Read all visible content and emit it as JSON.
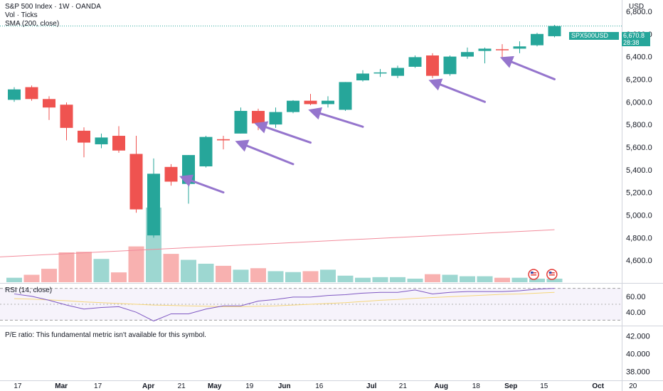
{
  "header": {
    "title": "S&P 500 Index · 1W · OANDA",
    "vol_label": "Vol · Ticks",
    "sma_label": "SMA (200, close)",
    "currency": "USD"
  },
  "last_price": {
    "symbol": "SPX500USD",
    "price": "6,670.8",
    "countdown": "28:38",
    "value": 6670.8
  },
  "rsi_panel": {
    "label": "RSI (14, close)"
  },
  "pe_panel": {
    "message": "P/E ratio: This fundamental metric isn't available for this symbol."
  },
  "colors": {
    "up": "#26a69a",
    "down": "#ef5350",
    "rsi": "#7e57c2",
    "rsi_ma": "#f5d67a",
    "sma": "#f28b9b",
    "arrow": "#9575cd",
    "badge": "#26a69a"
  },
  "chart_data": [
    {
      "type": "candlestick",
      "title": "S&P 500 Index · 1W · OANDA",
      "ylim": [
        4400,
        6900
      ],
      "y_ticks": [
        4600,
        4800,
        5000,
        5200,
        5400,
        5600,
        5800,
        6000,
        6200,
        6400,
        6600,
        6800
      ],
      "y_tick_labels": [
        "4,600.0",
        "4,800.0",
        "5,000.0",
        "5,200.0",
        "5,400.0",
        "5,600.0",
        "5,800.0",
        "6,000.0",
        "6,200.0",
        "6,400.0",
        "6,600.0",
        "6,800.0"
      ],
      "x_tick_labels": [
        "17",
        "Mar",
        "17",
        "Apr",
        "21",
        "May",
        "19",
        "Jun",
        "16",
        "Jul",
        "21",
        "Aug",
        "18",
        "Sep",
        "15",
        "Oct",
        "20"
      ],
      "x_tick_slots": [
        0.2,
        2.7,
        4.8,
        7.7,
        9.6,
        11.5,
        13.5,
        15.5,
        17.5,
        20.5,
        22.3,
        24.5,
        26.5,
        28.5,
        30.4,
        33.5,
        35.5
      ],
      "candles": [
        {
          "o": 6018,
          "h": 6130,
          "l": 6000,
          "c": 6110
        },
        {
          "o": 6130,
          "h": 6145,
          "l": 6010,
          "c": 6025
        },
        {
          "o": 6025,
          "h": 6050,
          "l": 5840,
          "c": 5950
        },
        {
          "o": 5975,
          "h": 5995,
          "l": 5660,
          "c": 5770
        },
        {
          "o": 5745,
          "h": 5775,
          "l": 5510,
          "c": 5640
        },
        {
          "o": 5625,
          "h": 5720,
          "l": 5590,
          "c": 5685
        },
        {
          "o": 5700,
          "h": 5785,
          "l": 5550,
          "c": 5570
        },
        {
          "o": 5540,
          "h": 5700,
          "l": 5020,
          "c": 5050
        },
        {
          "o": 4820,
          "h": 5500,
          "l": 4800,
          "c": 5365
        },
        {
          "o": 5425,
          "h": 5450,
          "l": 5260,
          "c": 5295
        },
        {
          "o": 5275,
          "h": 5530,
          "l": 5100,
          "c": 5530
        },
        {
          "o": 5430,
          "h": 5700,
          "l": 5420,
          "c": 5690
        },
        {
          "o": 5670,
          "h": 5700,
          "l": 5580,
          "c": 5660
        },
        {
          "o": 5720,
          "h": 5950,
          "l": 5720,
          "c": 5920
        },
        {
          "o": 5920,
          "h": 5940,
          "l": 5750,
          "c": 5810
        },
        {
          "o": 5800,
          "h": 5950,
          "l": 5770,
          "c": 5910
        },
        {
          "o": 5910,
          "h": 6015,
          "l": 5900,
          "c": 6010
        },
        {
          "o": 6010,
          "h": 6070,
          "l": 5970,
          "c": 5980
        },
        {
          "o": 5980,
          "h": 6050,
          "l": 5950,
          "c": 6010
        },
        {
          "o": 5930,
          "h": 6175,
          "l": 5920,
          "c": 6175
        },
        {
          "o": 6190,
          "h": 6280,
          "l": 6180,
          "c": 6250
        },
        {
          "o": 6260,
          "h": 6290,
          "l": 6220,
          "c": 6260
        },
        {
          "o": 6230,
          "h": 6320,
          "l": 6210,
          "c": 6300
        },
        {
          "o": 6310,
          "h": 6410,
          "l": 6300,
          "c": 6395
        },
        {
          "o": 6410,
          "h": 6430,
          "l": 6210,
          "c": 6230
        },
        {
          "o": 6245,
          "h": 6410,
          "l": 6230,
          "c": 6400
        },
        {
          "o": 6400,
          "h": 6480,
          "l": 6380,
          "c": 6440
        },
        {
          "o": 6450,
          "h": 6480,
          "l": 6340,
          "c": 6470
        },
        {
          "o": 6465,
          "h": 6510,
          "l": 6390,
          "c": 6460
        },
        {
          "o": 6470,
          "h": 6535,
          "l": 6430,
          "c": 6490
        },
        {
          "o": 6500,
          "h": 6610,
          "l": 6490,
          "c": 6600
        },
        {
          "o": 6580,
          "h": 6680,
          "l": 6570,
          "c": 6670
        }
      ],
      "volume": [
        0.15,
        0.25,
        0.45,
        1.0,
        1.02,
        0.78,
        0.33,
        1.2,
        2.5,
        0.95,
        0.75,
        0.62,
        0.55,
        0.42,
        0.47,
        0.37,
        0.34,
        0.37,
        0.42,
        0.22,
        0.15,
        0.17,
        0.17,
        0.12,
        0.27,
        0.25,
        0.2,
        0.2,
        0.15,
        0.15,
        0.12,
        0.12
      ],
      "sma200": [
        {
          "slot": 0,
          "value": 4630
        },
        {
          "slot": 31,
          "value": 4870
        }
      ],
      "annotations": [
        {
          "type": "arrow",
          "from_slot": 12,
          "from_value": 5200,
          "to_slot": 9.7,
          "to_value": 5330
        },
        {
          "type": "arrow",
          "from_slot": 16,
          "from_value": 5450,
          "to_slot": 12.9,
          "to_value": 5640
        },
        {
          "type": "arrow",
          "from_slot": 17,
          "from_value": 5640,
          "to_slot": 14.0,
          "to_value": 5800
        },
        {
          "type": "arrow",
          "from_slot": 20,
          "from_value": 5780,
          "to_slot": 17.1,
          "to_value": 5920
        },
        {
          "type": "arrow",
          "from_slot": 27,
          "from_value": 6000,
          "to_slot": 24.0,
          "to_value": 6180
        },
        {
          "type": "arrow",
          "from_slot": 31,
          "from_value": 6200,
          "to_slot": 28.1,
          "to_value": 6380
        }
      ]
    },
    {
      "type": "line",
      "title": "RSI (14, close)",
      "ylim": [
        25,
        75
      ],
      "y_ticks": [
        40,
        60
      ],
      "y_tick_labels": [
        "40.00",
        "60.00"
      ],
      "bands": [
        30,
        70
      ],
      "series": [
        {
          "values": [
            63,
            60,
            55,
            49,
            44,
            46,
            47,
            40,
            29,
            38,
            38,
            44,
            48,
            48,
            54,
            56,
            59,
            59,
            61,
            62,
            64,
            65,
            65,
            68,
            63,
            65,
            66,
            66,
            66,
            67,
            69,
            70
          ]
        },
        {
          "values": [
            57,
            56.5,
            55.5,
            54.5,
            53,
            52,
            51,
            50,
            49,
            48.5,
            48,
            47.5,
            47,
            47,
            47.5,
            48,
            49,
            50,
            51,
            52,
            53.5,
            55,
            56,
            57.5,
            58.5,
            59.5,
            60.5,
            61.5,
            62.5,
            63,
            64,
            65
          ]
        }
      ]
    },
    {
      "type": "line",
      "title": "P/E ratio",
      "ylim": [
        37000,
        43000
      ],
      "y_ticks": [
        38000,
        40000,
        42000
      ],
      "y_tick_labels": [
        "38.000",
        "40.000",
        "42.000"
      ]
    }
  ]
}
